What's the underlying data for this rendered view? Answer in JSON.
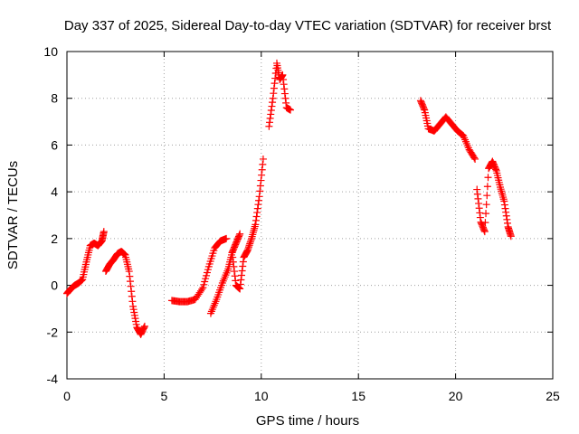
{
  "chart_data": {
    "type": "scatter",
    "title": "Day 337 of 2025, Sidereal Day-to-day VTEC variation (SDTVAR) for receiver brst",
    "xlabel": "GPS time / hours",
    "ylabel": "SDTVAR / TECUs",
    "xlim": [
      0,
      25
    ],
    "ylim": [
      -4,
      10
    ],
    "xticks": [
      "0",
      "5",
      "10",
      "15",
      "20",
      "25"
    ],
    "yticks": [
      "-4",
      "-2",
      "0",
      "2",
      "4",
      "6",
      "8",
      "10"
    ],
    "grid": true,
    "marker": "plus",
    "color": "#ff0000",
    "series": [
      {
        "name": "SDTVAR",
        "segments": [
          {
            "x": [
              0.0,
              0.2,
              0.4,
              0.6,
              0.8,
              1.0,
              1.2,
              1.4,
              1.6,
              1.8,
              1.9
            ],
            "y": [
              -0.35,
              -0.15,
              0.0,
              0.1,
              0.25,
              1.0,
              1.7,
              1.8,
              1.7,
              1.9,
              2.3
            ]
          },
          {
            "x": [
              2.0,
              2.2,
              2.4,
              2.6,
              2.8,
              3.0,
              3.2,
              3.4,
              3.6,
              3.8,
              4.0
            ],
            "y": [
              0.6,
              0.9,
              1.1,
              1.35,
              1.45,
              1.3,
              0.6,
              -0.9,
              -1.8,
              -2.1,
              -1.75
            ]
          },
          {
            "x": [
              5.4,
              5.8,
              6.2,
              6.6,
              7.0,
              7.3,
              7.6,
              7.9,
              8.2
            ],
            "y": [
              -0.65,
              -0.7,
              -0.7,
              -0.6,
              -0.1,
              0.8,
              1.6,
              1.9,
              2.0
            ]
          },
          {
            "x": [
              7.4,
              7.7,
              8.0,
              8.3,
              8.5,
              8.7,
              8.9
            ],
            "y": [
              -1.2,
              -0.6,
              0.1,
              0.7,
              1.4,
              1.8,
              2.2
            ]
          },
          {
            "x": [
              8.5,
              8.7,
              8.9,
              9.1,
              9.3,
              9.5,
              9.7,
              9.9,
              10.1
            ],
            "y": [
              1.4,
              0.0,
              -0.15,
              1.2,
              1.5,
              2.0,
              2.6,
              3.8,
              5.4
            ]
          },
          {
            "x": [
              10.4,
              10.6,
              10.8,
              10.95,
              11.1,
              11.3,
              11.5
            ],
            "y": [
              6.8,
              8.0,
              9.5,
              8.8,
              9.0,
              7.6,
              7.5
            ]
          },
          {
            "x": [
              18.2,
              18.4,
              18.6,
              18.9,
              19.2,
              19.5,
              19.8,
              20.1,
              20.4,
              20.7,
              21.0
            ],
            "y": [
              7.9,
              7.5,
              6.7,
              6.6,
              6.9,
              7.2,
              6.9,
              6.6,
              6.4,
              5.8,
              5.4
            ]
          },
          {
            "x": [
              21.1,
              21.3,
              21.5,
              21.7,
              21.9,
              22.1,
              22.3,
              22.5,
              22.7,
              22.85
            ],
            "y": [
              4.1,
              2.7,
              2.3,
              5.0,
              5.3,
              4.9,
              4.2,
              3.6,
              2.5,
              2.1
            ]
          }
        ]
      }
    ]
  }
}
